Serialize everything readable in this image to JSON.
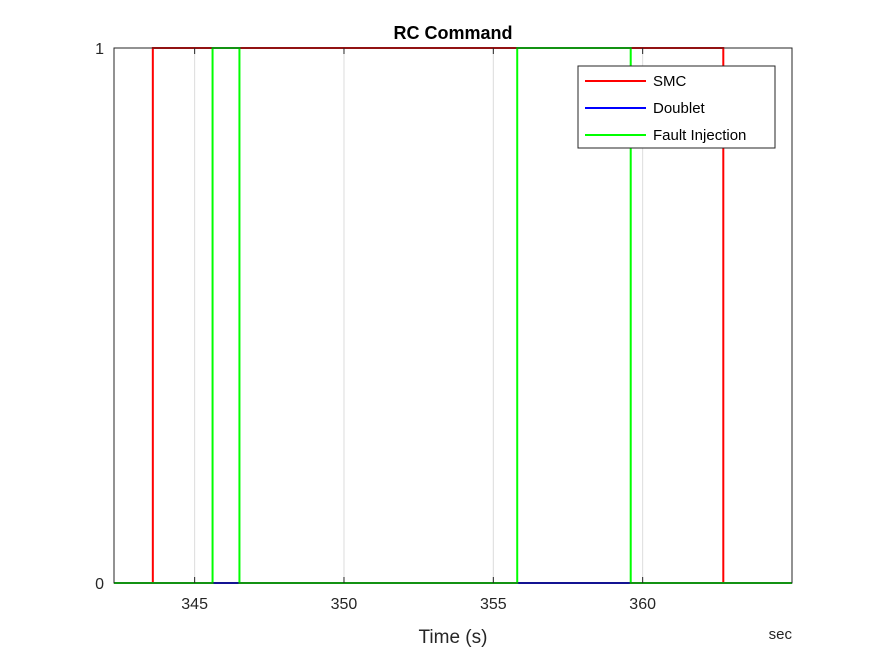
{
  "chart_data": {
    "type": "line",
    "title": "RC Command",
    "xlabel": "Time (s)",
    "ylabel": "",
    "x_unit_note": "sec",
    "xlim": [
      342.3,
      365.0
    ],
    "ylim": [
      0,
      1
    ],
    "xticks": [
      345,
      350,
      355,
      360
    ],
    "yticks": [
      0,
      1
    ],
    "grid": "x-only",
    "legend_position": "top-right",
    "series": [
      {
        "name": "SMC",
        "color": "#ff0000",
        "x": [
          342.3,
          343.6,
          343.6,
          362.7,
          362.7,
          365.0
        ],
        "y": [
          0,
          0,
          1,
          1,
          0,
          0
        ]
      },
      {
        "name": "Doublet",
        "color": "#0000ff",
        "x": [
          342.3,
          365.0
        ],
        "y": [
          0,
          0
        ]
      },
      {
        "name": "Fault Injection",
        "color": "#00ff00",
        "x": [
          342.3,
          345.6,
          345.6,
          346.5,
          346.5,
          355.8,
          355.8,
          359.6,
          359.6,
          365.0
        ],
        "y": [
          0,
          0,
          1,
          1,
          0,
          0,
          1,
          1,
          0,
          0
        ]
      }
    ]
  }
}
